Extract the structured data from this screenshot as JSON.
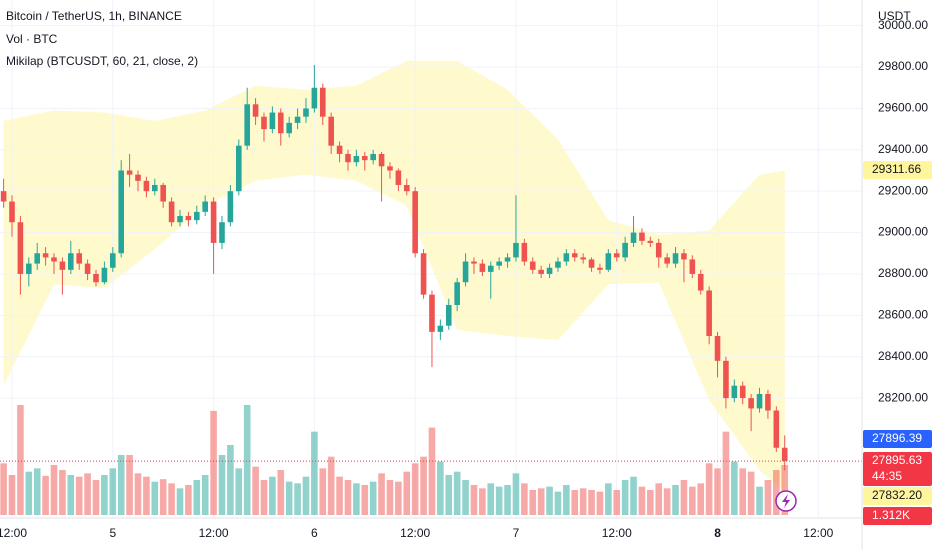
{
  "chart_data": {
    "type": "candlestick",
    "title": "Bitcoin / TetherUS, 1h, BINANCE",
    "subtitle": "Vol · BTC",
    "indicator": "Mikilap (BTCUSDT, 60, 21, close, 2)",
    "y_axis_label": "USDT",
    "up_color": "#26a69a",
    "down_color": "#ef5350",
    "band_color": "#fff9c4",
    "grid": true,
    "xlim": [
      -0.43,
      102.2
    ],
    "ylim": [
      27635,
      30124
    ],
    "vlim": [
      0,
      1500
    ],
    "yticks": [
      {
        "value": 28200,
        "label": "28200.00"
      },
      {
        "value": 28400,
        "label": "28400.00"
      },
      {
        "value": 28600,
        "label": "28600.00"
      },
      {
        "value": 28800,
        "label": "28800.00"
      },
      {
        "value": 29000,
        "label": "29000.00"
      },
      {
        "value": 29200,
        "label": "29200.00"
      },
      {
        "value": 29400,
        "label": "29400.00"
      },
      {
        "value": 29600,
        "label": "29600.00"
      },
      {
        "value": 29800,
        "label": "29800.00"
      },
      {
        "value": 30000,
        "label": "30000.00"
      }
    ],
    "xticks": [
      {
        "value": 1,
        "label": "12:00"
      },
      {
        "value": 13,
        "label": "5"
      },
      {
        "value": 25,
        "label": "12:00"
      },
      {
        "value": 37,
        "label": "6"
      },
      {
        "value": 49,
        "label": "12:00"
      },
      {
        "value": 61,
        "label": "7"
      },
      {
        "value": 73,
        "label": "12:00"
      },
      {
        "value": 85,
        "label": "8"
      },
      {
        "value": 97,
        "label": "12:00"
      }
    ],
    "candles": [
      [
        29200,
        29260,
        29120,
        29150
      ],
      [
        29150,
        29180,
        28980,
        29050
      ],
      [
        29050,
        29080,
        28700,
        28800
      ],
      [
        28800,
        28880,
        28740,
        28850
      ],
      [
        28850,
        28950,
        28820,
        28900
      ],
      [
        28900,
        28930,
        28840,
        28880
      ],
      [
        28880,
        28900,
        28800,
        28860
      ],
      [
        28860,
        28880,
        28700,
        28820
      ],
      [
        28820,
        28960,
        28800,
        28900
      ],
      [
        28900,
        28920,
        28820,
        28850
      ],
      [
        28850,
        28870,
        28770,
        28800
      ],
      [
        28800,
        28820,
        28740,
        28760
      ],
      [
        28760,
        28860,
        28750,
        28830
      ],
      [
        28830,
        28930,
        28810,
        28900
      ],
      [
        28900,
        29350,
        28880,
        29300
      ],
      [
        29300,
        29380,
        29220,
        29280
      ],
      [
        29280,
        29300,
        29200,
        29250
      ],
      [
        29250,
        29270,
        29170,
        29200
      ],
      [
        29200,
        29260,
        29180,
        29230
      ],
      [
        29230,
        29240,
        29120,
        29150
      ],
      [
        29150,
        29170,
        29030,
        29050
      ],
      [
        29050,
        29110,
        29030,
        29080
      ],
      [
        29080,
        29100,
        29030,
        29060
      ],
      [
        29060,
        29130,
        29040,
        29100
      ],
      [
        29100,
        29180,
        29080,
        29150
      ],
      [
        29150,
        29170,
        28800,
        28950
      ],
      [
        28950,
        29080,
        28920,
        29050
      ],
      [
        29050,
        29230,
        29030,
        29200
      ],
      [
        29200,
        29450,
        29180,
        29420
      ],
      [
        29420,
        29700,
        29400,
        29620
      ],
      [
        29620,
        29650,
        29520,
        29560
      ],
      [
        29560,
        29580,
        29440,
        29500
      ],
      [
        29500,
        29610,
        29480,
        29580
      ],
      [
        29580,
        29600,
        29420,
        29480
      ],
      [
        29480,
        29560,
        29460,
        29530
      ],
      [
        29530,
        29600,
        29500,
        29560
      ],
      [
        29560,
        29650,
        29530,
        29600
      ],
      [
        29600,
        29810,
        29580,
        29700
      ],
      [
        29700,
        29720,
        29520,
        29560
      ],
      [
        29560,
        29580,
        29380,
        29420
      ],
      [
        29420,
        29440,
        29340,
        29380
      ],
      [
        29380,
        29400,
        29300,
        29340
      ],
      [
        29340,
        29400,
        29320,
        29370
      ],
      [
        29370,
        29390,
        29300,
        29350
      ],
      [
        29350,
        29400,
        29330,
        29380
      ],
      [
        29380,
        29390,
        29150,
        29320
      ],
      [
        29320,
        29340,
        29260,
        29300
      ],
      [
        29300,
        29310,
        29200,
        29230
      ],
      [
        29230,
        29260,
        29180,
        29200
      ],
      [
        29200,
        29220,
        28880,
        28900
      ],
      [
        28900,
        28920,
        28680,
        28700
      ],
      [
        28700,
        28720,
        28350,
        28520
      ],
      [
        28520,
        28580,
        28480,
        28550
      ],
      [
        28550,
        28680,
        28530,
        28650
      ],
      [
        28650,
        28780,
        28620,
        28760
      ],
      [
        28760,
        28900,
        28740,
        28860
      ],
      [
        28860,
        28880,
        28800,
        28850
      ],
      [
        28850,
        28870,
        28790,
        28810
      ],
      [
        28810,
        28860,
        28680,
        28840
      ],
      [
        28840,
        28880,
        28820,
        28860
      ],
      [
        28860,
        28900,
        28830,
        28880
      ],
      [
        28880,
        29180,
        28860,
        28950
      ],
      [
        28950,
        28970,
        28840,
        28860
      ],
      [
        28860,
        28880,
        28800,
        28820
      ],
      [
        28820,
        28840,
        28780,
        28800
      ],
      [
        28800,
        28850,
        28780,
        28830
      ],
      [
        28830,
        28880,
        28810,
        28860
      ],
      [
        28860,
        28920,
        28840,
        28900
      ],
      [
        28900,
        28920,
        28860,
        28880
      ],
      [
        28880,
        28900,
        28850,
        28870
      ],
      [
        28870,
        28880,
        28810,
        28830
      ],
      [
        28830,
        28850,
        28800,
        28820
      ],
      [
        28820,
        28920,
        28810,
        28900
      ],
      [
        28900,
        28920,
        28860,
        28880
      ],
      [
        28880,
        28980,
        28860,
        28950
      ],
      [
        28950,
        29080,
        28930,
        29000
      ],
      [
        29000,
        29020,
        28940,
        28960
      ],
      [
        28960,
        28980,
        28930,
        28950
      ],
      [
        28950,
        28970,
        28830,
        28880
      ],
      [
        28880,
        28900,
        28830,
        28850
      ],
      [
        28850,
        28930,
        28830,
        28900
      ],
      [
        28900,
        28920,
        28760,
        28870
      ],
      [
        28870,
        28890,
        28780,
        28800
      ],
      [
        28800,
        28820,
        28700,
        28720
      ],
      [
        28720,
        28740,
        28460,
        28500
      ],
      [
        28500,
        28520,
        28300,
        28380
      ],
      [
        28380,
        28400,
        28150,
        28200
      ],
      [
        28200,
        28290,
        28180,
        28260
      ],
      [
        28260,
        28280,
        28170,
        28200
      ],
      [
        28200,
        28220,
        28040,
        28150
      ],
      [
        28150,
        28250,
        28130,
        28220
      ],
      [
        28220,
        28240,
        28100,
        28140
      ],
      [
        28140,
        28160,
        27940,
        27960
      ],
      [
        27960,
        28020,
        27850,
        27896
      ]
    ],
    "volumes": [
      620,
      480,
      1320,
      520,
      560,
      470,
      600,
      540,
      480,
      460,
      500,
      420,
      480,
      560,
      720,
      720,
      500,
      460,
      400,
      430,
      380,
      320,
      360,
      420,
      480,
      1250,
      720,
      840,
      560,
      1320,
      580,
      420,
      460,
      540,
      400,
      380,
      460,
      1000,
      560,
      700,
      460,
      420,
      380,
      360,
      400,
      500,
      420,
      400,
      520,
      620,
      700,
      1050,
      640,
      480,
      520,
      420,
      360,
      320,
      380,
      340,
      360,
      500,
      380,
      300,
      320,
      340,
      280,
      360,
      300,
      320,
      300,
      280,
      380,
      300,
      420,
      460,
      340,
      300,
      380,
      320,
      360,
      420,
      340,
      380,
      620,
      560,
      1000,
      640,
      560,
      520,
      340,
      420,
      540,
      600
    ],
    "band": {
      "x": [
        0,
        6,
        12,
        18,
        24,
        30,
        36,
        42,
        48,
        54,
        60,
        66,
        72,
        78,
        84,
        90,
        93
      ],
      "upper": [
        29540,
        29590,
        29580,
        29540,
        29590,
        29710,
        29690,
        29710,
        29830,
        29830,
        29690,
        29450,
        29060,
        28990,
        29010,
        29280,
        29300
      ],
      "lower": [
        28260,
        28750,
        28730,
        28920,
        29130,
        29250,
        29280,
        29250,
        29130,
        28530,
        28500,
        28480,
        28750,
        28760,
        28190,
        27850,
        27750
      ]
    },
    "price_labels": [
      {
        "value": 29311.66,
        "color": "#fff59d"
      },
      {
        "value": 27896.39,
        "color": "#2962ff"
      },
      {
        "value": 27895.63,
        "color": "#f23645"
      },
      {
        "value": 27832.2,
        "label": "27832.20",
        "color": "#fff59d"
      },
      {
        "value": 1312,
        "label": "1.312K",
        "color": "#f23645"
      }
    ],
    "countdown": "44:35"
  }
}
